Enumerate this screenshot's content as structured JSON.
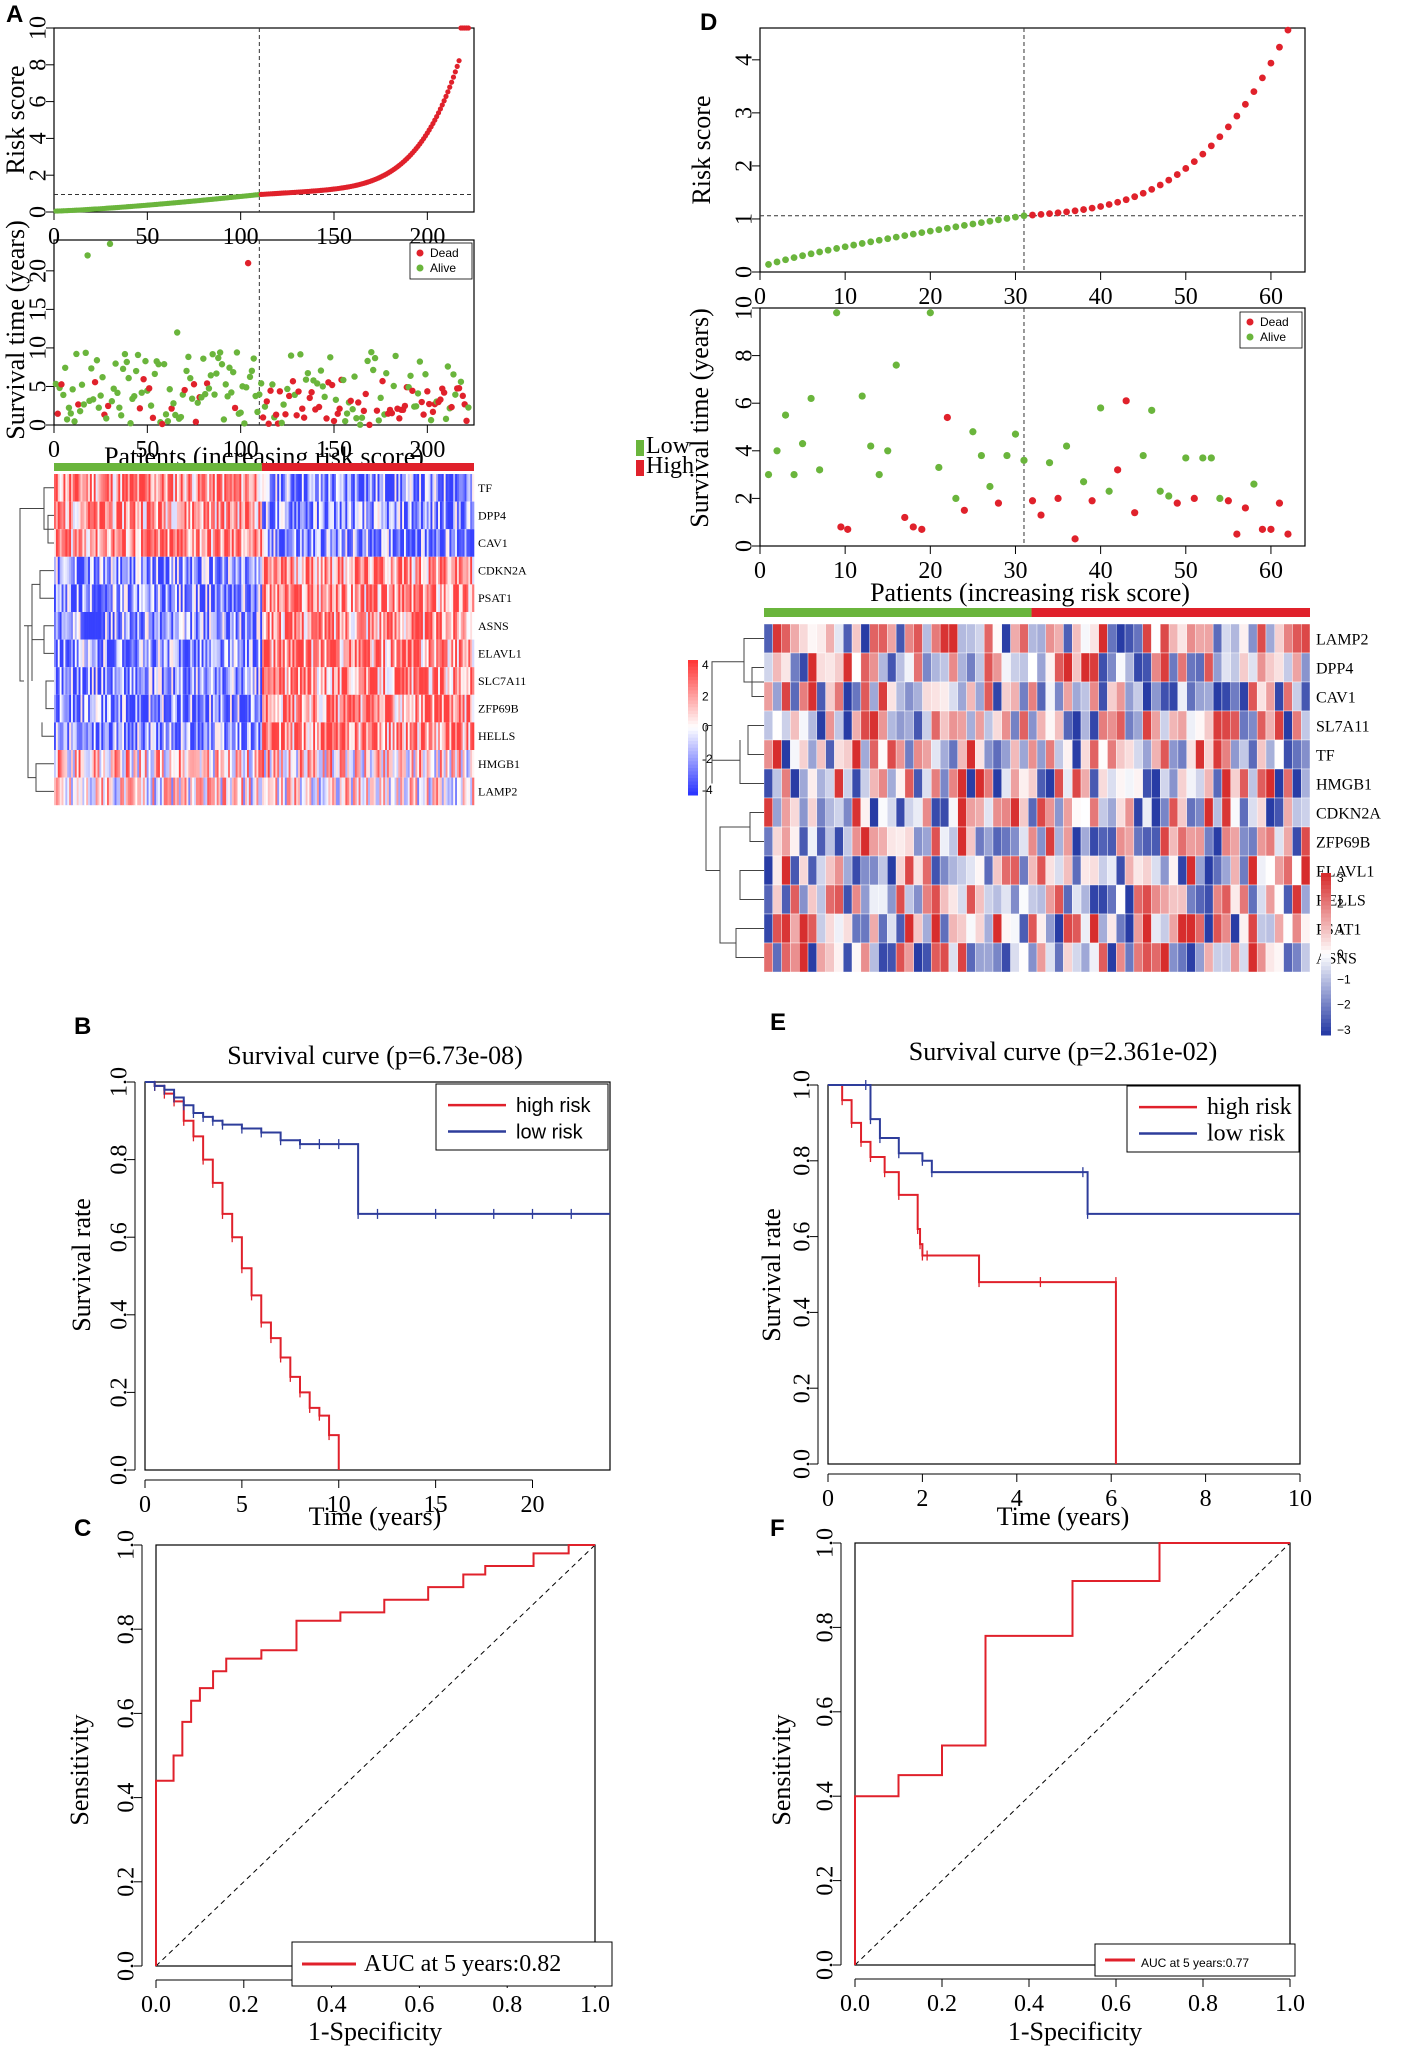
{
  "chart_data": [
    {
      "panel": "A",
      "type": "scatter",
      "name": "risk score",
      "ylabel": "Risk score",
      "xlim": [
        0,
        225
      ],
      "ylim": [
        0,
        10
      ],
      "xticks": [
        "0",
        "50",
        "100",
        "150",
        "200"
      ],
      "yticks": [
        "0",
        "2",
        "4",
        "6",
        "8",
        "10"
      ],
      "cutoff_x": 110,
      "cutoff_y": 0.95,
      "n_patients": 222,
      "colors": {
        "low": "#6ab53c",
        "high": "#e0212b"
      }
    },
    {
      "panel": "A",
      "type": "scatter",
      "name": "survival time",
      "ylabel": "Survival time (years)",
      "xlabel": "Patients (increasing risk score)",
      "xlim": [
        0,
        225
      ],
      "ylim": [
        0,
        24
      ],
      "xticks": [
        "0",
        "50",
        "100",
        "150",
        "200"
      ],
      "yticks": [
        "0",
        "5",
        "10",
        "15",
        "20"
      ],
      "cutoff_x": 110,
      "legend": [
        "Dead",
        "Alive"
      ]
    },
    {
      "panel": "A",
      "type": "heatmap",
      "name": "gene expression",
      "genes": [
        "TF",
        "DPP4",
        "CAV1",
        "CDKN2A",
        "PSAT1",
        "ASNS",
        "ELAVL1",
        "SLC7A11",
        "ZFP69B",
        "HELLS",
        "HMGB1",
        "LAMP2"
      ],
      "groups": [
        "Low",
        "High"
      ],
      "scale_ticks": [
        "4",
        "2",
        "0",
        "-2",
        "-4"
      ],
      "n_columns": 222
    },
    {
      "panel": "B",
      "type": "line",
      "title": "Survival curve (p=6.73e-08)",
      "xlabel": "Time (years)",
      "ylabel": "Survival rate",
      "xlim": [
        0,
        24
      ],
      "ylim": [
        0,
        1
      ],
      "xticks": [
        "0",
        "5",
        "10",
        "15",
        "20"
      ],
      "yticks": [
        "0.0",
        "0.2",
        "0.4",
        "0.6",
        "0.8",
        "1.0"
      ],
      "legend": [
        "high risk",
        "low risk"
      ],
      "series": [
        {
          "name": "high risk",
          "x": [
            0,
            0.5,
            1,
            1.5,
            2,
            2.5,
            3,
            3.5,
            4,
            4.5,
            5,
            5.5,
            6,
            6.5,
            7,
            7.5,
            8,
            8.5,
            9,
            9.5,
            10
          ],
          "values": [
            1.0,
            0.99,
            0.97,
            0.95,
            0.9,
            0.86,
            0.8,
            0.74,
            0.66,
            0.6,
            0.52,
            0.45,
            0.38,
            0.34,
            0.29,
            0.24,
            0.2,
            0.16,
            0.14,
            0.09,
            0.0
          ]
        },
        {
          "name": "low risk",
          "x": [
            0,
            0.5,
            1,
            1.5,
            2,
            2.5,
            3,
            3.5,
            4,
            5,
            6,
            7,
            8,
            9,
            10,
            11,
            12,
            15,
            18,
            20,
            22,
            24
          ],
          "values": [
            1.0,
            0.99,
            0.98,
            0.96,
            0.94,
            0.92,
            0.91,
            0.9,
            0.89,
            0.88,
            0.87,
            0.85,
            0.84,
            0.84,
            0.84,
            0.66,
            0.66,
            0.66,
            0.66,
            0.66,
            0.66,
            0.66
          ]
        }
      ]
    },
    {
      "panel": "C",
      "type": "line",
      "xlabel": "1-Specificity",
      "ylabel": "Sensitivity",
      "xlim": [
        0,
        1
      ],
      "ylim": [
        0,
        1
      ],
      "xticks": [
        "0.0",
        "0.2",
        "0.4",
        "0.6",
        "0.8",
        "1.0"
      ],
      "yticks": [
        "0.0",
        "0.2",
        "0.4",
        "0.6",
        "0.8",
        "1.0"
      ],
      "legend": [
        "AUC at 5 years:0.82"
      ],
      "series": [
        {
          "name": "ROC",
          "x": [
            0,
            0,
            0.04,
            0.04,
            0.06,
            0.06,
            0.08,
            0.08,
            0.1,
            0.1,
            0.13,
            0.13,
            0.16,
            0.16,
            0.24,
            0.24,
            0.32,
            0.32,
            0.42,
            0.42,
            0.52,
            0.52,
            0.62,
            0.62,
            0.7,
            0.7,
            0.75,
            0.75,
            0.86,
            0.86,
            0.94,
            0.94,
            1.0
          ],
          "values": [
            0,
            0.44,
            0.44,
            0.5,
            0.5,
            0.58,
            0.58,
            0.63,
            0.63,
            0.66,
            0.66,
            0.7,
            0.7,
            0.73,
            0.73,
            0.75,
            0.75,
            0.82,
            0.82,
            0.84,
            0.84,
            0.87,
            0.87,
            0.9,
            0.9,
            0.93,
            0.93,
            0.95,
            0.95,
            0.98,
            0.98,
            1.0,
            1.0
          ]
        }
      ]
    },
    {
      "panel": "D",
      "type": "scatter",
      "name": "risk score",
      "ylabel": "Risk score",
      "xlim": [
        0,
        64
      ],
      "ylim": [
        0,
        4.6
      ],
      "xticks": [
        "0",
        "10",
        "20",
        "30",
        "40",
        "50",
        "60"
      ],
      "yticks": [
        "0",
        "1",
        "2",
        "3",
        "4"
      ],
      "cutoff_x": 31,
      "cutoff_y": 1.06,
      "n_patients": 62
    },
    {
      "panel": "D",
      "type": "scatter",
      "name": "survival time",
      "ylabel": "Survival time (years)",
      "xlabel": "Patients (increasing risk score)",
      "xlim": [
        0,
        64
      ],
      "ylim": [
        0,
        10
      ],
      "xticks": [
        "0",
        "10",
        "20",
        "30",
        "40",
        "50",
        "60"
      ],
      "yticks": [
        "0",
        "2",
        "4",
        "6",
        "8",
        "10"
      ],
      "cutoff_x": 31,
      "legend": [
        "Dead",
        "Alive"
      ]
    },
    {
      "panel": "D",
      "type": "heatmap",
      "name": "gene expression",
      "genes": [
        "LAMP2",
        "DPP4",
        "CAV1",
        "SL7A11",
        "TF",
        "HMGB1",
        "CDKN2A",
        "ZFP69B",
        "ELAVL1",
        "HELLS",
        "PSAT1",
        "ASNS"
      ],
      "scale_ticks": [
        "3",
        "2",
        "1",
        "0",
        "−1",
        "−2",
        "−3"
      ],
      "n_columns": 62
    },
    {
      "panel": "E",
      "type": "line",
      "title": "Survival curve (p=2.361e-02)",
      "xlabel": "Time (years)",
      "ylabel": "Survival rate",
      "xlim": [
        0,
        10
      ],
      "ylim": [
        0,
        1
      ],
      "xticks": [
        "0",
        "2",
        "4",
        "6",
        "8",
        "10"
      ],
      "yticks": [
        "0.0",
        "0.2",
        "0.4",
        "0.6",
        "0.8",
        "1.0"
      ],
      "legend": [
        "high risk",
        "low risk"
      ],
      "series": [
        {
          "name": "high risk",
          "x": [
            0,
            0.3,
            0.5,
            0.7,
            0.9,
            1.2,
            1.5,
            1.9,
            1.95,
            2.0,
            2.1,
            3.2,
            4.5,
            6.1,
            6.1
          ],
          "values": [
            1.0,
            0.96,
            0.9,
            0.85,
            0.81,
            0.77,
            0.71,
            0.62,
            0.58,
            0.55,
            0.55,
            0.48,
            0.48,
            0.48,
            0.0
          ]
        },
        {
          "name": "low risk",
          "x": [
            0,
            0.8,
            0.9,
            1.1,
            1.5,
            2.0,
            2.2,
            5.4,
            5.5,
            10
          ],
          "values": [
            1.0,
            1.0,
            0.91,
            0.86,
            0.82,
            0.8,
            0.77,
            0.77,
            0.66,
            0.66
          ]
        }
      ]
    },
    {
      "panel": "F",
      "type": "line",
      "xlabel": "1-Specificity",
      "ylabel": "Sensitivity",
      "xlim": [
        0,
        1
      ],
      "ylim": [
        0,
        1
      ],
      "xticks": [
        "0.0",
        "0.2",
        "0.4",
        "0.6",
        "0.8",
        "1.0"
      ],
      "yticks": [
        "0.0",
        "0.2",
        "0.4",
        "0.6",
        "0.8",
        "1.0"
      ],
      "legend": [
        "AUC at 5 years:0.77"
      ],
      "series": [
        {
          "name": "ROC",
          "x": [
            0,
            0,
            0.1,
            0.1,
            0.2,
            0.2,
            0.3,
            0.3,
            0.5,
            0.5,
            0.7,
            0.7,
            1.0
          ],
          "values": [
            0,
            0.4,
            0.4,
            0.45,
            0.45,
            0.52,
            0.52,
            0.78,
            0.78,
            0.91,
            0.91,
            1.0,
            1.0
          ]
        }
      ]
    }
  ]
}
